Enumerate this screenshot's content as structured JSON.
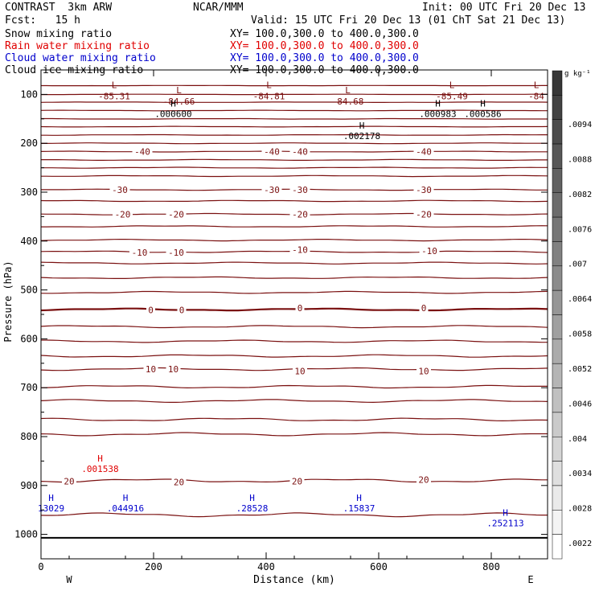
{
  "header": {
    "model": "CONTRAST  3km ARW",
    "org": "NCAR/MMM",
    "init": "Init: 00 UTC Fri 20 Dec 13",
    "fcst": "Fcst:   15 h",
    "valid": "Valid: 15 UTC Fri 20 Dec 13 (01 ChT Sat 21 Dec 13)"
  },
  "fields": [
    {
      "name": "Snow mixing ratio",
      "xy": "XY= 100.0,300.0 to 400.0,300.0",
      "color": "#000000"
    },
    {
      "name": "Rain water mixing ratio",
      "xy": "XY= 100.0,300.0 to 400.0,300.0",
      "color": "#e00000"
    },
    {
      "name": "Cloud water mixing ratio",
      "xy": "XY= 100.0,300.0 to 400.0,300.0",
      "color": "#0000cc"
    },
    {
      "name": "Cloud ice mixing ratio",
      "xy": "XY= 100.0,300.0 to 400.0,300.0",
      "color": "#000000"
    }
  ],
  "chart_data": {
    "type": "cross-section contour",
    "xlabel": "Distance (km)",
    "ylabel": "Pressure (hPa)",
    "xlim": [
      0,
      900
    ],
    "ylim": [
      1050,
      50
    ],
    "x_ticks": [
      "0",
      "200",
      "400",
      "600",
      "800"
    ],
    "x_tick_values": [
      0,
      200,
      400,
      600,
      800
    ],
    "y_ticks": [
      "100",
      "200",
      "300",
      "400",
      "500",
      "600",
      "700",
      "800",
      "900",
      "1000"
    ],
    "y_tick_values": [
      100,
      200,
      300,
      400,
      500,
      600,
      700,
      800,
      900,
      1000
    ],
    "endpoints": {
      "left": "W",
      "right": "E"
    },
    "temperature_color": "#7a1010",
    "temperature_isotherms": [
      {
        "p": 82,
        "label": ""
      },
      {
        "p": 100,
        "label": ""
      },
      {
        "p": 116,
        "label": ""
      },
      {
        "p": 133,
        "label": ""
      },
      {
        "p": 150,
        "label": ""
      },
      {
        "p": 166,
        "label": ""
      },
      {
        "p": 183,
        "label": ""
      },
      {
        "p": 200,
        "label": ""
      },
      {
        "p": 217,
        "label": "-40"
      },
      {
        "p": 234,
        "label": ""
      },
      {
        "p": 250,
        "label": ""
      },
      {
        "p": 267,
        "label": ""
      },
      {
        "p": 295,
        "label": "-30"
      },
      {
        "p": 318,
        "label": ""
      },
      {
        "p": 345,
        "label": "-20"
      },
      {
        "p": 370,
        "label": ""
      },
      {
        "p": 398,
        "label": ""
      },
      {
        "p": 422,
        "label": "-10"
      },
      {
        "p": 445,
        "label": ""
      },
      {
        "p": 475,
        "label": ""
      },
      {
        "p": 505,
        "label": ""
      },
      {
        "p": 540,
        "label": "0",
        "bold": true
      },
      {
        "p": 575,
        "label": ""
      },
      {
        "p": 605,
        "label": ""
      },
      {
        "p": 635,
        "label": ""
      },
      {
        "p": 662,
        "label": "10"
      },
      {
        "p": 698,
        "label": ""
      },
      {
        "p": 727,
        "label": ""
      },
      {
        "p": 765,
        "label": ""
      },
      {
        "p": 795,
        "label": ""
      },
      {
        "p": 890,
        "label": "20"
      },
      {
        "p": 960,
        "label": ""
      }
    ],
    "isotherm_labels": [
      {
        "x": 180,
        "p": 217,
        "text": "-40"
      },
      {
        "x": 410,
        "p": 217,
        "text": "-40"
      },
      {
        "x": 460,
        "p": 217,
        "text": "-40"
      },
      {
        "x": 680,
        "p": 217,
        "text": "-40"
      },
      {
        "x": 140,
        "p": 295,
        "text": "-30"
      },
      {
        "x": 410,
        "p": 295,
        "text": "-30"
      },
      {
        "x": 460,
        "p": 295,
        "text": "-30"
      },
      {
        "x": 680,
        "p": 295,
        "text": "-30"
      },
      {
        "x": 145,
        "p": 345,
        "text": "-20"
      },
      {
        "x": 240,
        "p": 345,
        "text": "-20"
      },
      {
        "x": 460,
        "p": 345,
        "text": "-20"
      },
      {
        "x": 680,
        "p": 345,
        "text": "-20"
      },
      {
        "x": 175,
        "p": 423,
        "text": "-10"
      },
      {
        "x": 240,
        "p": 423,
        "text": "-10"
      },
      {
        "x": 460,
        "p": 418,
        "text": "-10"
      },
      {
        "x": 690,
        "p": 420,
        "text": "-10"
      },
      {
        "x": 195,
        "p": 541,
        "text": "0"
      },
      {
        "x": 250,
        "p": 541,
        "text": "0"
      },
      {
        "x": 460,
        "p": 537,
        "text": "0"
      },
      {
        "x": 680,
        "p": 537,
        "text": "0"
      },
      {
        "x": 195,
        "p": 662,
        "text": "10"
      },
      {
        "x": 235,
        "p": 662,
        "text": "10"
      },
      {
        "x": 460,
        "p": 666,
        "text": "10"
      },
      {
        "x": 680,
        "p": 666,
        "text": "10"
      },
      {
        "x": 50,
        "p": 891,
        "text": "20"
      },
      {
        "x": 245,
        "p": 893,
        "text": "20"
      },
      {
        "x": 455,
        "p": 891,
        "text": "20"
      },
      {
        "x": 680,
        "p": 888,
        "text": "20"
      }
    ],
    "temp_extrema": [
      {
        "x": 130,
        "p": 100,
        "symbol": "L",
        "value": "-85.31"
      },
      {
        "x": 245,
        "p": 111,
        "symbol": "L",
        "value": "-84.66"
      },
      {
        "x": 405,
        "p": 100,
        "symbol": "L",
        "value": "-84.81"
      },
      {
        "x": 545,
        "p": 111,
        "symbol": "L",
        "value": "-84.68"
      },
      {
        "x": 730,
        "p": 100,
        "symbol": "L",
        "value": "-85.49"
      },
      {
        "x": 880,
        "p": 100,
        "symbol": "L",
        "value": "-84"
      }
    ],
    "ice_maxima": [
      {
        "x": 235,
        "p": 138,
        "value": ".000600",
        "color": "#000000"
      },
      {
        "x": 705,
        "p": 138,
        "value": ".000983",
        "color": "#000000"
      },
      {
        "x": 785,
        "p": 138,
        "value": ".000586",
        "color": "#000000"
      },
      {
        "x": 570,
        "p": 183,
        "value": ".002178",
        "color": "#000000"
      }
    ],
    "rain_maxima": [
      {
        "x": 105,
        "p": 864,
        "value": ".001538",
        "color": "#e00000"
      }
    ],
    "cloud_water_maxima": [
      {
        "x": 18,
        "p": 945,
        "value": "13029",
        "color": "#0000cc"
      },
      {
        "x": 150,
        "p": 945,
        "value": ".044916",
        "color": "#0000cc"
      },
      {
        "x": 375,
        "p": 945,
        "value": ".28528",
        "color": "#0000cc"
      },
      {
        "x": 565,
        "p": 945,
        "value": ".15837",
        "color": "#0000cc"
      },
      {
        "x": 825,
        "p": 975,
        "value": ".252113",
        "color": "#0000cc"
      }
    ],
    "ground_pressure": 1007,
    "colorbar": {
      "unit": "g kg⁻¹",
      "labels": [
        ".0094",
        ".0088",
        ".0082",
        ".0076",
        ".007",
        ".0064",
        ".0058",
        ".0052",
        ".0046",
        ".004",
        ".0034",
        ".0028",
        ".0022"
      ],
      "n_bins": 20
    }
  }
}
